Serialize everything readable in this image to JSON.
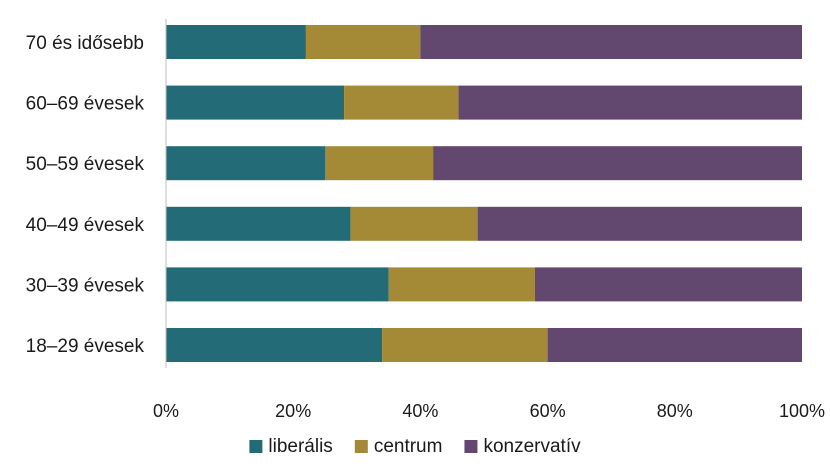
{
  "chart_data": {
    "type": "bar",
    "orientation": "horizontal",
    "stacked": true,
    "categories": [
      "70 és idősebb",
      "60–69 évesek",
      "50–59 évesek",
      "40–49 évesek",
      "30–39 évesek",
      "18–29 évesek"
    ],
    "series": [
      {
        "name": "liberális",
        "color": "#236b76",
        "values": [
          22,
          28,
          25,
          29,
          35,
          34
        ]
      },
      {
        "name": "centrum",
        "color": "#a48a37",
        "values": [
          18,
          18,
          17,
          20,
          23,
          26
        ]
      },
      {
        "name": "konzervatív",
        "color": "#62476f",
        "values": [
          60,
          54,
          58,
          51,
          42,
          40
        ]
      }
    ],
    "xlim": [
      0,
      100
    ],
    "xticks": [
      0,
      20,
      40,
      60,
      80,
      100
    ],
    "tick_suffix": "%",
    "grid": false,
    "legend_position": "bottom"
  }
}
